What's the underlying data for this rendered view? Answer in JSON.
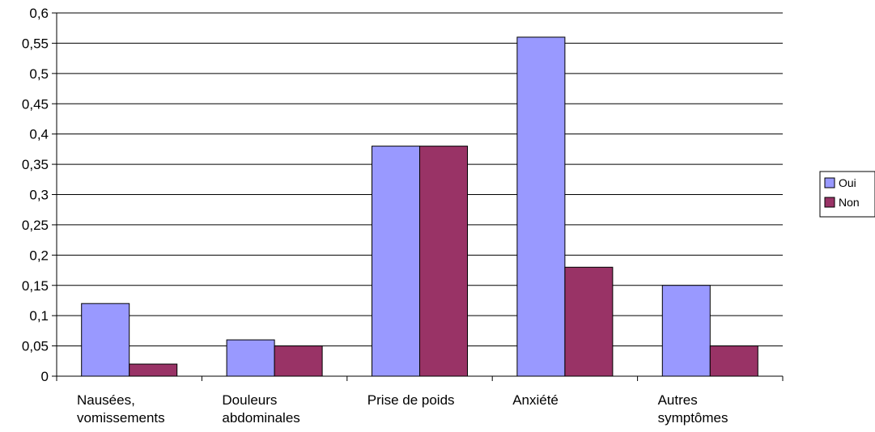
{
  "chart_data": {
    "type": "bar",
    "title": "",
    "xlabel": "",
    "ylabel": "",
    "categories": [
      [
        "Nausées,",
        "vomissements"
      ],
      [
        "Douleurs",
        "abdominales"
      ],
      [
        "Prise de poids"
      ],
      [
        "Anxiété"
      ],
      [
        "Autres",
        "symptômes"
      ]
    ],
    "series": [
      {
        "name": "Oui",
        "color": "#9999ff",
        "values": [
          0.12,
          0.06,
          0.38,
          0.56,
          0.15
        ]
      },
      {
        "name": "Non",
        "color": "#993366",
        "values": [
          0.02,
          0.05,
          0.38,
          0.18,
          0.05
        ]
      }
    ],
    "ylim": [
      0,
      0.6
    ],
    "yticks": [
      "0",
      "0,05",
      "0,1",
      "0,15",
      "0,2",
      "0,25",
      "0,3",
      "0,35",
      "0,4",
      "0,45",
      "0,5",
      "0,55",
      "0,6"
    ],
    "grid": true,
    "legend_position": "right"
  }
}
